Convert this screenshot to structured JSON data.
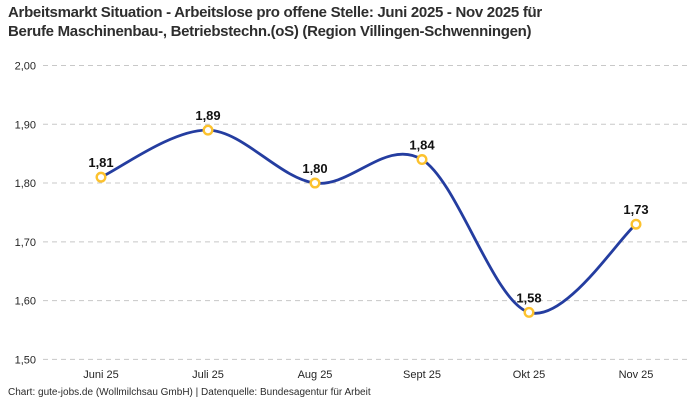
{
  "title": {
    "line1": "Arbeitsmarkt Situation - Arbeitslose pro offene Stelle: Juni 2025 - Nov 2025 für",
    "line2": "Berufe Maschinenbau-, Betriebstechn.(oS) (Region Villingen-Schwenningen)"
  },
  "footer": {
    "text": "Chart: gute-jobs.de (Wollmilchsau GmbH) | Datenquelle: Bundesagentur für Arbeit"
  },
  "chart_data": {
    "type": "line",
    "title": "Arbeitsmarkt Situation - Arbeitslose pro offene Stelle: Juni 2025 - Nov 2025 für Berufe Maschinenbau-, Betriebstechn.(oS) (Region Villingen-Schwenningen)",
    "categories": [
      "Juni 25",
      "Juli 25",
      "Aug 25",
      "Sept 25",
      "Okt 25",
      "Nov 25"
    ],
    "values": [
      1.81,
      1.89,
      1.8,
      1.84,
      1.58,
      1.73
    ],
    "point_labels": [
      "1,81",
      "1,89",
      "1,80",
      "1,84",
      "1,58",
      "1,73"
    ],
    "y_tick_labels": [
      "2,00",
      "1,90",
      "1,80",
      "1,70",
      "1,60",
      "1,50"
    ],
    "y_tick_values": [
      2.0,
      1.9,
      1.8,
      1.7,
      1.6,
      1.5
    ],
    "ylim": [
      1.5,
      2.0
    ],
    "xlabel": "",
    "ylabel": "",
    "legend": "none",
    "grid": "horizontal-dashed",
    "curve": "smooth",
    "colors": {
      "line": "#243da0",
      "marker_ring": "#fcc22e",
      "marker_fill": "#ffffff",
      "grid_line": "#c8c8c8",
      "tick_text": "#262626",
      "point_label_text": "#121212"
    }
  }
}
